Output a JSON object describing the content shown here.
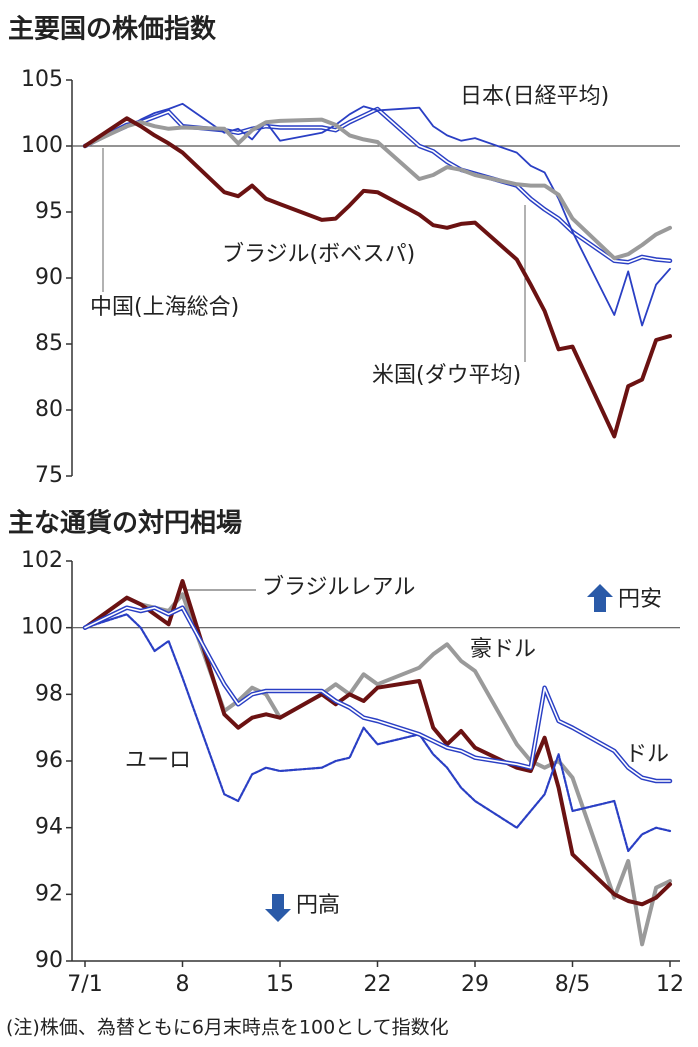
{
  "chart_data": [
    {
      "type": "line",
      "title": "主要国の株価指数",
      "x": [
        0,
        3,
        4,
        5,
        6,
        7,
        10,
        11,
        12,
        13,
        14,
        17,
        18,
        19,
        20,
        21,
        24,
        25,
        26,
        27,
        28,
        31,
        32,
        33,
        34,
        35,
        38,
        39,
        40,
        41,
        42
      ],
      "xlim": [
        0,
        42
      ],
      "ylim": [
        75,
        105
      ],
      "yticks": [
        75,
        80,
        85,
        90,
        95,
        100,
        105
      ],
      "hline": 100,
      "series": [
        {
          "name": "日本(日経平均)",
          "color": "#2a3fc4",
          "style": "double",
          "values": [
            100,
            101.6,
            101.8,
            102.2,
            102.6,
            101.5,
            101.2,
            101.0,
            101.3,
            101.5,
            101.4,
            101.4,
            101.2,
            101.8,
            102.3,
            102.8,
            100.0,
            99.6,
            98.8,
            98.2,
            97.9,
            97.0,
            96.0,
            95.2,
            94.5,
            93.5,
            91.3,
            91.2,
            91.6,
            91.4,
            91.3
          ]
        },
        {
          "name": "ブラジル(ボベスパ)",
          "color": "#2a3fc4",
          "style": "solid",
          "values": [
            100,
            101.4,
            102.0,
            102.5,
            102.8,
            103.2,
            101.0,
            101.3,
            100.5,
            101.8,
            100.4,
            101.0,
            101.6,
            102.4,
            103.0,
            102.7,
            102.9,
            101.5,
            100.8,
            100.4,
            100.6,
            99.5,
            98.5,
            98.0,
            96.0,
            93.5,
            87.2,
            90.5,
            86.4,
            89.5,
            90.7
          ]
        },
        {
          "name": "中国(上海総合)",
          "color": "#9a9a9a",
          "style": "thick",
          "values": [
            100,
            101.5,
            101.8,
            101.5,
            101.3,
            101.4,
            101.3,
            100.2,
            101.2,
            101.8,
            101.9,
            102.0,
            101.6,
            100.8,
            100.5,
            100.3,
            97.5,
            97.8,
            98.4,
            98.2,
            97.8,
            97.1,
            97.0,
            97.0,
            96.3,
            94.5,
            91.5,
            91.8,
            92.5,
            93.3,
            93.8
          ]
        },
        {
          "name": "米国(ダウ平均)",
          "color": "#6b1212",
          "style": "thick",
          "values": [
            100,
            102.1,
            101.5,
            100.8,
            100.2,
            99.5,
            96.5,
            96.2,
            97.0,
            96.0,
            95.6,
            94.4,
            94.5,
            95.5,
            96.6,
            96.5,
            94.8,
            94.0,
            93.8,
            94.1,
            94.2,
            91.4,
            89.5,
            87.5,
            84.6,
            84.8,
            78.0,
            81.8,
            82.3,
            85.3,
            85.6
          ]
        }
      ]
    },
    {
      "type": "line",
      "title": "主な通貨の対円相場",
      "x": [
        0,
        3,
        4,
        5,
        6,
        7,
        10,
        11,
        12,
        13,
        14,
        17,
        18,
        19,
        20,
        21,
        24,
        25,
        26,
        27,
        28,
        31,
        32,
        33,
        34,
        35,
        38,
        39,
        40,
        41,
        42
      ],
      "xlim": [
        0,
        42
      ],
      "ylim": [
        90,
        102
      ],
      "yticks": [
        90,
        92,
        94,
        96,
        98,
        100,
        102
      ],
      "hline": 100,
      "xticks": [
        {
          "value": 0,
          "label": "7/1"
        },
        {
          "value": 7,
          "label": "8"
        },
        {
          "value": 14,
          "label": "15"
        },
        {
          "value": 21,
          "label": "22"
        },
        {
          "value": 28,
          "label": "29"
        },
        {
          "value": 35,
          "label": "8/5"
        },
        {
          "value": 42,
          "label": "12"
        }
      ],
      "annotations": [
        "円安",
        "円高"
      ],
      "series": [
        {
          "name": "ブラジルレアル",
          "color": "#9a9a9a",
          "style": "thick",
          "values": [
            100,
            100.9,
            100.7,
            100.6,
            100.5,
            101.0,
            97.5,
            97.8,
            98.2,
            98.0,
            97.3,
            98.0,
            98.3,
            98.0,
            98.6,
            98.3,
            98.8,
            99.2,
            99.5,
            99.0,
            98.7,
            96.5,
            96.0,
            95.8,
            96.0,
            95.5,
            91.9,
            93.0,
            90.5,
            92.2,
            92.4
          ]
        },
        {
          "name": "豪ドル",
          "color": "#6b1212",
          "style": "thick",
          "values": [
            100,
            100.9,
            100.7,
            100.4,
            100.1,
            101.4,
            97.4,
            97.0,
            97.3,
            97.4,
            97.3,
            98.0,
            97.7,
            98.0,
            97.8,
            98.2,
            98.4,
            97.0,
            96.5,
            96.9,
            96.4,
            95.8,
            95.7,
            96.7,
            95.2,
            93.2,
            92.0,
            91.8,
            91.7,
            91.9,
            92.3
          ]
        },
        {
          "name": "ユーロ",
          "color": "#2a3fc4",
          "style": "dotted",
          "values": [
            100,
            100.4,
            100.0,
            99.3,
            99.6,
            98.5,
            95.0,
            94.8,
            95.6,
            95.8,
            95.7,
            95.8,
            96.0,
            96.1,
            97.0,
            96.5,
            96.8,
            96.2,
            95.8,
            95.2,
            94.8,
            94.0,
            94.5,
            95.0,
            96.2,
            94.5,
            94.8,
            93.3,
            93.8,
            94.0,
            93.9
          ]
        },
        {
          "name": "ドル",
          "color": "#2a3fc4",
          "style": "double",
          "values": [
            100,
            100.6,
            100.5,
            100.6,
            100.4,
            100.6,
            98.3,
            97.7,
            98.0,
            98.1,
            98.1,
            98.1,
            97.8,
            97.6,
            97.3,
            97.2,
            96.8,
            96.6,
            96.4,
            96.3,
            96.1,
            95.9,
            95.8,
            98.2,
            97.2,
            97.0,
            96.3,
            95.8,
            95.5,
            95.4,
            95.4
          ]
        }
      ]
    }
  ],
  "note": "(注)株価、為替ともに6月末時点を100として指数化"
}
